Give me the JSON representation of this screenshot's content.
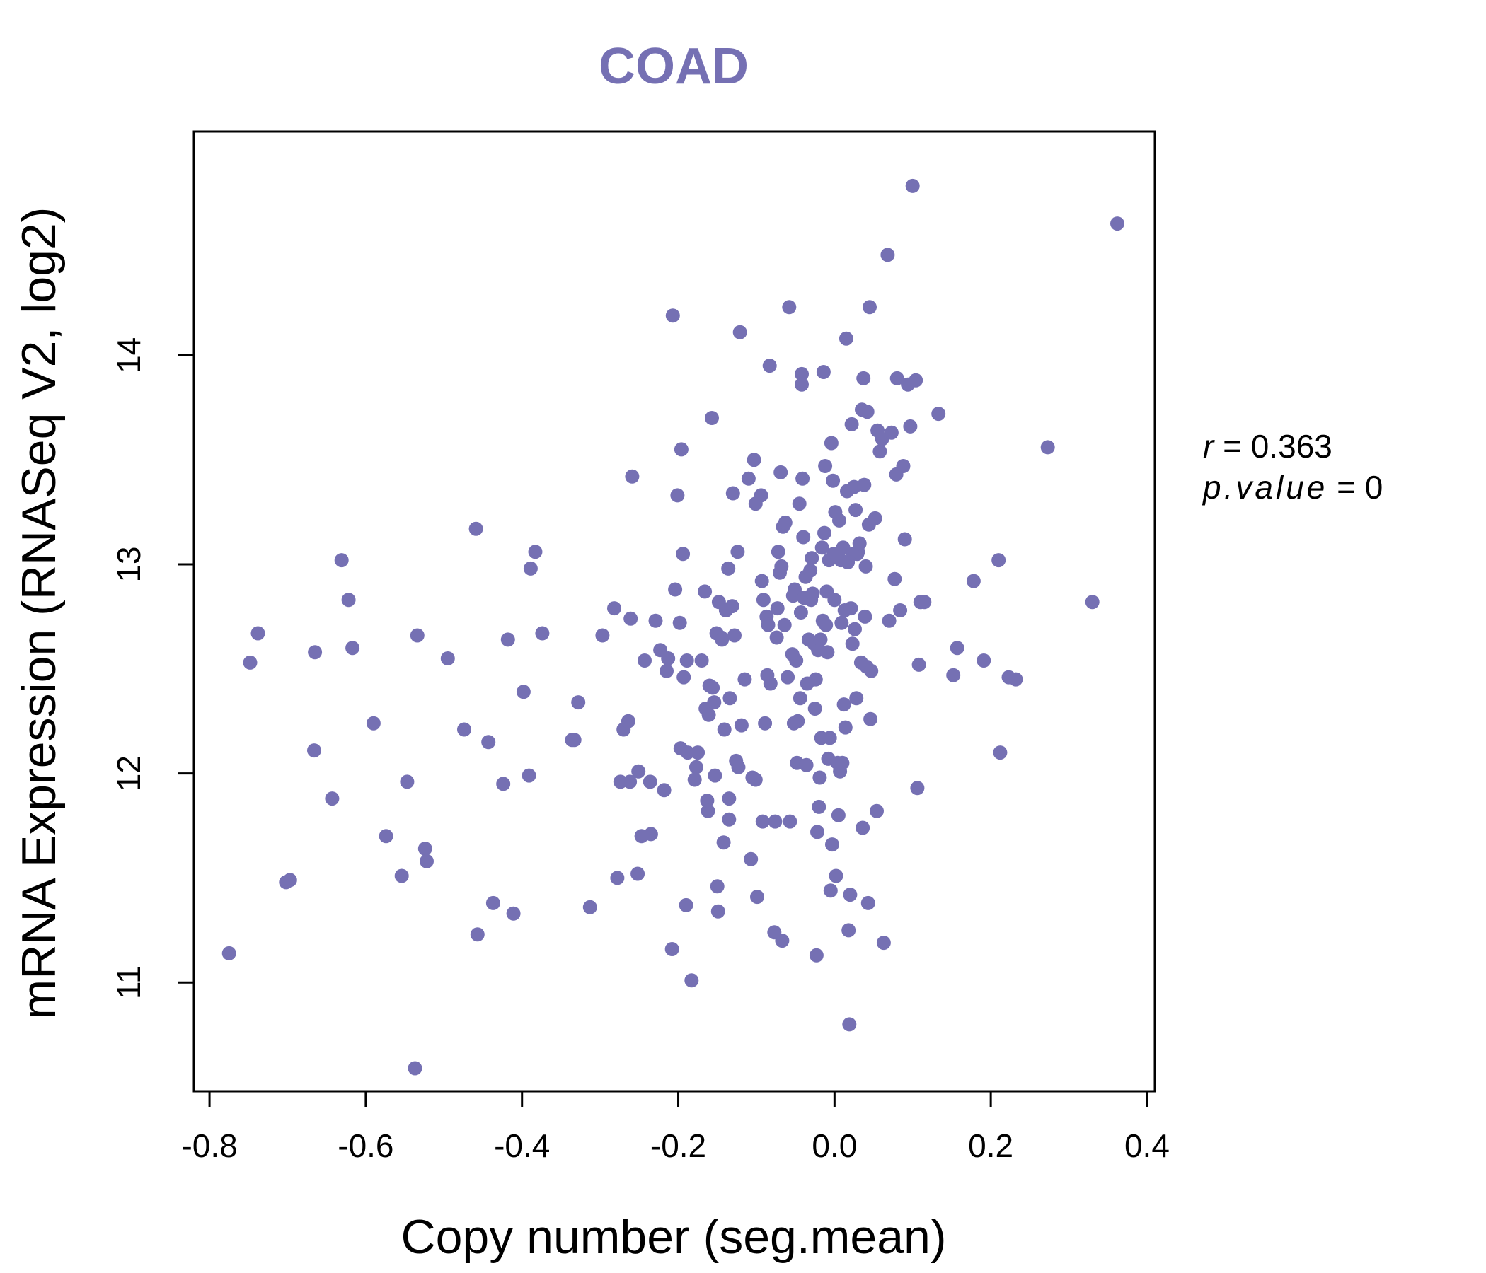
{
  "chart_data": {
    "type": "scatter",
    "title": "COAD",
    "xlabel": "Copy number (seg.mean)",
    "ylabel": "mRNA Expression (RNASeq V2, log2)",
    "xlim": [
      -0.82,
      0.41
    ],
    "ylim": [
      10.48,
      15.07
    ],
    "xticks": [
      -0.8,
      -0.6,
      -0.4,
      -0.2,
      0.0,
      0.2,
      0.4
    ],
    "xtick_labels": [
      "-0.8",
      "-0.6",
      "-0.4",
      "-0.2",
      "0.0",
      "0.2",
      "0.4"
    ],
    "yticks": [
      11,
      12,
      13,
      14
    ],
    "ytick_labels": [
      "11",
      "12",
      "13",
      "14"
    ],
    "annotations": {
      "r_label": "r",
      "r_value": "0.363",
      "p_label": "p.value",
      "p_value": "0"
    },
    "colors": {
      "point": "#7570b3",
      "title": "#7570b3",
      "axis": "#000000"
    },
    "points": [
      [
        -0.775,
        11.14
      ],
      [
        -0.748,
        12.53
      ],
      [
        -0.738,
        12.67
      ],
      [
        -0.702,
        11.48
      ],
      [
        -0.697,
        11.49
      ],
      [
        -0.665,
        12.58
      ],
      [
        -0.666,
        12.11
      ],
      [
        -0.643,
        11.88
      ],
      [
        -0.631,
        13.02
      ],
      [
        -0.622,
        12.83
      ],
      [
        -0.617,
        12.6
      ],
      [
        -0.59,
        12.24
      ],
      [
        -0.574,
        11.7
      ],
      [
        -0.554,
        11.51
      ],
      [
        -0.547,
        11.96
      ],
      [
        -0.534,
        12.66
      ],
      [
        -0.537,
        10.59
      ],
      [
        -0.524,
        11.64
      ],
      [
        -0.522,
        11.58
      ],
      [
        -0.495,
        12.55
      ],
      [
        -0.474,
        12.21
      ],
      [
        -0.459,
        13.17
      ],
      [
        -0.457,
        11.23
      ],
      [
        -0.443,
        12.15
      ],
      [
        -0.437,
        11.38
      ],
      [
        -0.424,
        11.95
      ],
      [
        -0.418,
        12.64
      ],
      [
        -0.411,
        11.33
      ],
      [
        -0.398,
        12.39
      ],
      [
        -0.391,
        11.99
      ],
      [
        -0.389,
        12.98
      ],
      [
        -0.383,
        13.06
      ],
      [
        -0.374,
        12.67
      ],
      [
        -0.336,
        12.16
      ],
      [
        -0.333,
        12.16
      ],
      [
        -0.328,
        12.34
      ],
      [
        -0.313,
        11.36
      ],
      [
        -0.297,
        12.66
      ],
      [
        -0.282,
        12.79
      ],
      [
        -0.278,
        11.5
      ],
      [
        -0.274,
        11.96
      ],
      [
        -0.27,
        12.21
      ],
      [
        -0.262,
        11.96
      ],
      [
        -0.264,
        12.25
      ],
      [
        -0.261,
        12.74
      ],
      [
        -0.259,
        13.42
      ],
      [
        -0.252,
        11.52
      ],
      [
        -0.251,
        12.01
      ],
      [
        -0.247,
        11.7
      ],
      [
        -0.243,
        12.54
      ],
      [
        -0.236,
        11.96
      ],
      [
        -0.235,
        11.71
      ],
      [
        -0.229,
        12.73
      ],
      [
        -0.223,
        12.59
      ],
      [
        -0.218,
        11.92
      ],
      [
        -0.215,
        12.49
      ],
      [
        -0.213,
        12.55
      ],
      [
        -0.208,
        11.16
      ],
      [
        -0.207,
        14.19
      ],
      [
        -0.204,
        12.88
      ],
      [
        -0.201,
        13.33
      ],
      [
        -0.198,
        12.72
      ],
      [
        -0.197,
        12.12
      ],
      [
        -0.196,
        13.55
      ],
      [
        -0.194,
        13.05
      ],
      [
        -0.193,
        12.46
      ],
      [
        -0.19,
        11.37
      ],
      [
        -0.189,
        12.54
      ],
      [
        -0.188,
        12.1
      ],
      [
        -0.183,
        11.01
      ],
      [
        -0.179,
        11.97
      ],
      [
        -0.177,
        12.03
      ],
      [
        -0.175,
        12.1
      ],
      [
        -0.17,
        12.54
      ],
      [
        -0.166,
        12.87
      ],
      [
        -0.165,
        12.31
      ],
      [
        -0.163,
        11.87
      ],
      [
        -0.162,
        11.82
      ],
      [
        -0.161,
        12.28
      ],
      [
        -0.16,
        12.42
      ],
      [
        -0.157,
        13.7
      ],
      [
        -0.156,
        12.41
      ],
      [
        -0.154,
        12.34
      ],
      [
        -0.153,
        11.99
      ],
      [
        -0.151,
        12.67
      ],
      [
        -0.15,
        11.46
      ],
      [
        -0.149,
        11.34
      ],
      [
        -0.148,
        12.82
      ],
      [
        -0.145,
        12.65
      ],
      [
        -0.144,
        12.64
      ],
      [
        -0.142,
        11.67
      ],
      [
        -0.141,
        12.21
      ],
      [
        -0.139,
        12.78
      ],
      [
        -0.136,
        12.98
      ],
      [
        -0.135,
        11.78
      ],
      [
        -0.135,
        11.88
      ],
      [
        -0.134,
        12.36
      ],
      [
        -0.131,
        12.8
      ],
      [
        -0.13,
        13.34
      ],
      [
        -0.128,
        12.66
      ],
      [
        -0.126,
        12.06
      ],
      [
        -0.124,
        13.06
      ],
      [
        -0.123,
        12.03
      ],
      [
        -0.121,
        14.11
      ],
      [
        -0.119,
        12.23
      ],
      [
        -0.115,
        12.45
      ],
      [
        -0.11,
        13.41
      ],
      [
        -0.107,
        11.59
      ],
      [
        -0.105,
        11.98
      ],
      [
        -0.103,
        13.5
      ],
      [
        -0.101,
        13.29
      ],
      [
        -0.101,
        11.97
      ],
      [
        -0.099,
        11.41
      ],
      [
        -0.094,
        13.33
      ],
      [
        -0.093,
        12.92
      ],
      [
        -0.092,
        11.77
      ],
      [
        -0.091,
        12.83
      ],
      [
        -0.089,
        12.24
      ],
      [
        -0.087,
        12.75
      ],
      [
        -0.086,
        12.47
      ],
      [
        -0.085,
        12.71
      ],
      [
        -0.083,
        13.95
      ],
      [
        -0.082,
        12.43
      ],
      [
        -0.077,
        11.24
      ],
      [
        -0.076,
        11.77
      ],
      [
        -0.074,
        12.65
      ],
      [
        -0.073,
        12.79
      ],
      [
        -0.072,
        13.06
      ],
      [
        -0.07,
        12.96
      ],
      [
        -0.069,
        13.44
      ],
      [
        -0.068,
        12.99
      ],
      [
        -0.067,
        11.2
      ],
      [
        -0.066,
        13.18
      ],
      [
        -0.064,
        12.71
      ],
      [
        -0.063,
        13.2
      ],
      [
        -0.06,
        12.46
      ],
      [
        -0.058,
        14.23
      ],
      [
        -0.057,
        11.77
      ],
      [
        -0.054,
        12.57
      ],
      [
        -0.053,
        12.85
      ],
      [
        -0.052,
        12.24
      ],
      [
        -0.051,
        12.88
      ],
      [
        -0.049,
        12.54
      ],
      [
        -0.048,
        12.05
      ],
      [
        -0.047,
        12.25
      ],
      [
        -0.045,
        13.29
      ],
      [
        -0.044,
        12.36
      ],
      [
        -0.043,
        12.77
      ],
      [
        -0.042,
        13.91
      ],
      [
        -0.042,
        13.86
      ],
      [
        -0.041,
        13.41
      ],
      [
        -0.04,
        13.13
      ],
      [
        -0.039,
        12.84
      ],
      [
        -0.037,
        12.94
      ],
      [
        -0.036,
        12.04
      ],
      [
        -0.035,
        12.43
      ],
      [
        -0.033,
        12.64
      ],
      [
        -0.031,
        12.97
      ],
      [
        -0.03,
        12.83
      ],
      [
        -0.029,
        13.03
      ],
      [
        -0.028,
        12.86
      ],
      [
        -0.026,
        12.62
      ],
      [
        -0.025,
        12.31
      ],
      [
        -0.024,
        12.45
      ],
      [
        -0.023,
        11.13
      ],
      [
        -0.022,
        11.72
      ],
      [
        -0.021,
        12.59
      ],
      [
        -0.02,
        11.84
      ],
      [
        -0.019,
        11.98
      ],
      [
        -0.018,
        12.64
      ],
      [
        -0.017,
        12.17
      ],
      [
        -0.016,
        13.08
      ],
      [
        -0.015,
        12.73
      ],
      [
        -0.014,
        13.92
      ],
      [
        -0.013,
        13.15
      ],
      [
        -0.012,
        13.47
      ],
      [
        -0.011,
        12.71
      ],
      [
        -0.01,
        12.87
      ],
      [
        -0.009,
        12.58
      ],
      [
        -0.008,
        12.07
      ],
      [
        -0.007,
        13.02
      ],
      [
        -0.006,
        12.17
      ],
      [
        -0.005,
        11.44
      ],
      [
        -0.004,
        13.58
      ],
      [
        -0.003,
        11.66
      ],
      [
        -0.002,
        13.4
      ],
      [
        -0.001,
        13.05
      ],
      [
        0.0,
        12.83
      ],
      [
        0.001,
        13.25
      ],
      [
        0.002,
        11.51
      ],
      [
        0.003,
        13.04
      ],
      [
        0.004,
        12.05
      ],
      [
        0.005,
        11.8
      ],
      [
        0.006,
        13.21
      ],
      [
        0.007,
        12.01
      ],
      [
        0.008,
        13.02
      ],
      [
        0.009,
        12.72
      ],
      [
        0.01,
        12.05
      ],
      [
        0.011,
        13.08
      ],
      [
        0.012,
        12.33
      ],
      [
        0.013,
        12.78
      ],
      [
        0.014,
        12.22
      ],
      [
        0.015,
        14.08
      ],
      [
        0.016,
        13.35
      ],
      [
        0.017,
        13.01
      ],
      [
        0.018,
        11.25
      ],
      [
        0.019,
        10.8
      ],
      [
        0.02,
        11.42
      ],
      [
        0.021,
        12.79
      ],
      [
        0.022,
        13.67
      ],
      [
        0.023,
        12.62
      ],
      [
        0.024,
        13.05
      ],
      [
        0.025,
        13.37
      ],
      [
        0.026,
        12.69
      ],
      [
        0.027,
        13.26
      ],
      [
        0.028,
        12.36
      ],
      [
        0.029,
        13.05
      ],
      [
        0.03,
        13.06
      ],
      [
        0.032,
        13.1
      ],
      [
        0.034,
        12.53
      ],
      [
        0.035,
        13.74
      ],
      [
        0.036,
        11.74
      ],
      [
        0.037,
        13.89
      ],
      [
        0.038,
        13.38
      ],
      [
        0.039,
        12.75
      ],
      [
        0.04,
        12.99
      ],
      [
        0.041,
        12.51
      ],
      [
        0.042,
        13.73
      ],
      [
        0.043,
        11.38
      ],
      [
        0.044,
        13.19
      ],
      [
        0.045,
        14.23
      ],
      [
        0.046,
        12.26
      ],
      [
        0.047,
        12.49
      ],
      [
        0.052,
        13.22
      ],
      [
        0.054,
        11.82
      ],
      [
        0.055,
        13.64
      ],
      [
        0.058,
        13.54
      ],
      [
        0.061,
        13.6
      ],
      [
        0.063,
        11.19
      ],
      [
        0.068,
        14.48
      ],
      [
        0.07,
        12.73
      ],
      [
        0.073,
        13.63
      ],
      [
        0.077,
        12.93
      ],
      [
        0.079,
        13.43
      ],
      [
        0.08,
        13.89
      ],
      [
        0.084,
        12.78
      ],
      [
        0.088,
        13.47
      ],
      [
        0.09,
        13.12
      ],
      [
        0.094,
        13.86
      ],
      [
        0.097,
        13.66
      ],
      [
        0.1,
        14.81
      ],
      [
        0.104,
        13.88
      ],
      [
        0.106,
        11.93
      ],
      [
        0.108,
        12.52
      ],
      [
        0.11,
        12.82
      ],
      [
        0.115,
        12.82
      ],
      [
        0.133,
        13.72
      ],
      [
        0.152,
        12.47
      ],
      [
        0.157,
        12.6
      ],
      [
        0.178,
        12.92
      ],
      [
        0.191,
        12.54
      ],
      [
        0.21,
        13.02
      ],
      [
        0.212,
        12.1
      ],
      [
        0.223,
        12.46
      ],
      [
        0.232,
        12.45
      ],
      [
        0.273,
        13.56
      ],
      [
        0.33,
        12.82
      ],
      [
        0.362,
        14.63
      ]
    ]
  }
}
